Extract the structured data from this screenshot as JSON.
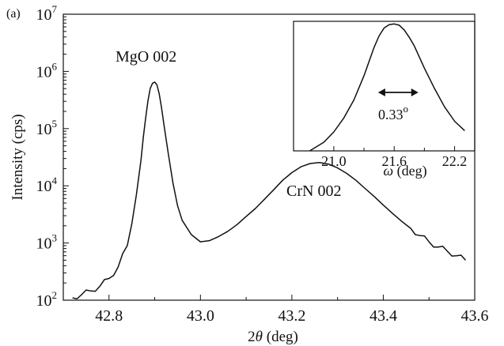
{
  "chart_data": [
    {
      "type": "line",
      "panel_label": "(a)",
      "xlabel_prefix": "2",
      "xlabel_symbol": "θ",
      "xlabel_suffix": " (deg)",
      "ylabel": "Intensity (cps)",
      "xlim": [
        42.7,
        43.6
      ],
      "ylim": [
        100,
        10000000
      ],
      "yscale": "log",
      "x_ticks": [
        "42.8",
        "43.0",
        "43.2",
        "43.4",
        "43.6"
      ],
      "y_ticks": [
        {
          "base": "10",
          "exp": "2"
        },
        {
          "base": "10",
          "exp": "3"
        },
        {
          "base": "10",
          "exp": "4"
        },
        {
          "base": "10",
          "exp": "5"
        },
        {
          "base": "10",
          "exp": "6"
        },
        {
          "base": "10",
          "exp": "7"
        }
      ],
      "annotations": [
        "MgO 002",
        "CrN 002"
      ],
      "series": [
        {
          "x": [
            42.72,
            42.74,
            42.76,
            42.78,
            42.8,
            42.82,
            42.84,
            42.85,
            42.86,
            42.87,
            42.875,
            42.88,
            42.885,
            42.89,
            42.895,
            42.9,
            42.905,
            42.91,
            42.915,
            42.92,
            42.93,
            42.94,
            42.95,
            42.96,
            42.98,
            43.0,
            43.02,
            43.04,
            43.06,
            43.08,
            43.1,
            43.12,
            43.14,
            43.16,
            43.18,
            43.2,
            43.22,
            43.24,
            43.26,
            43.28,
            43.3,
            43.32,
            43.34,
            43.36,
            43.38,
            43.4,
            43.42,
            43.44,
            43.46,
            43.48,
            43.5,
            43.52,
            43.54,
            43.56,
            43.58
          ],
          "y": [
            110,
            125,
            145,
            175,
            240,
            380,
            900,
            2200,
            7000,
            28000,
            70000,
            150000,
            300000,
            500000,
            620000,
            650000,
            580000,
            400000,
            230000,
            120000,
            35000,
            11000,
            4500,
            2500,
            1400,
            1050,
            1100,
            1300,
            1600,
            2100,
            2900,
            4000,
            5800,
            8500,
            12500,
            17000,
            21500,
            24500,
            25500,
            24000,
            20500,
            16500,
            12500,
            9000,
            6500,
            4600,
            3300,
            2400,
            1800,
            1350,
            1050,
            850,
            720,
            600,
            500
          ]
        }
      ]
    },
    {
      "type": "line",
      "xlabel_symbol": "ω",
      "xlabel_suffix": " (deg)",
      "xlim": [
        20.6,
        22.4
      ],
      "yscale": "log",
      "x_ticks": [
        "21.0",
        "21.6",
        "22.2"
      ],
      "fwhm_value": "0.33",
      "fwhm_unit": "o",
      "fwhm_range": [
        21.44,
        21.84
      ],
      "series": [
        {
          "x": [
            20.76,
            20.9,
            21.0,
            21.1,
            21.2,
            21.3,
            21.4,
            21.45,
            21.5,
            21.55,
            21.6,
            21.65,
            21.7,
            21.75,
            21.8,
            21.9,
            22.0,
            22.1,
            22.2,
            22.3
          ],
          "y": [
            0.001,
            0.0016,
            0.0028,
            0.006,
            0.016,
            0.06,
            0.28,
            0.52,
            0.8,
            0.96,
            1.0,
            0.93,
            0.72,
            0.48,
            0.3,
            0.09,
            0.03,
            0.011,
            0.005,
            0.003
          ]
        }
      ]
    }
  ]
}
